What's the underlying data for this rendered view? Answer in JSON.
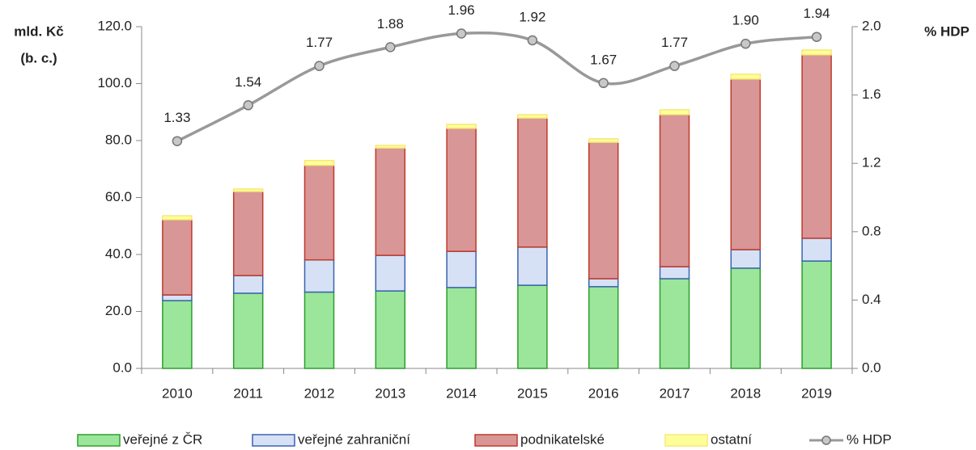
{
  "chart_data": {
    "type": "bar",
    "stacked": true,
    "ylabel": [
      "mld. Kč",
      "(b. c.)"
    ],
    "y2label": "% HDP",
    "categories": [
      "2010",
      "2011",
      "2012",
      "2013",
      "2014",
      "2015",
      "2016",
      "2017",
      "2018",
      "2019"
    ],
    "series": [
      {
        "name": "veřejné z ČR",
        "color": "#9be69b",
        "stroke": "#2e9e2e",
        "values": [
          23.8,
          26.4,
          26.8,
          27.2,
          28.4,
          29.2,
          28.7,
          31.5,
          35.2,
          37.7
        ]
      },
      {
        "name": "veřejné zahraniční",
        "color": "#d7e1f5",
        "stroke": "#3a63b0",
        "values": [
          2.0,
          6.2,
          11.3,
          12.5,
          12.7,
          13.4,
          2.8,
          4.2,
          6.5,
          8.0
        ]
      },
      {
        "name": "podnikatelské",
        "color": "#d99696",
        "stroke": "#c0392b",
        "values": [
          26.4,
          29.5,
          33.2,
          37.7,
          43.2,
          45.3,
          47.9,
          53.4,
          59.9,
          64.4
        ]
      },
      {
        "name": "ostatní",
        "color": "#ffff99",
        "stroke": "#f5e87a",
        "values": [
          1.4,
          0.9,
          1.7,
          0.9,
          1.4,
          1.2,
          1.2,
          1.7,
          1.7,
          1.7
        ]
      },
      {
        "name": "% HDP",
        "type": "line",
        "axis": "y2",
        "color": "#999999",
        "marker_color": "#c8c8c8",
        "marker_stroke": "#777777",
        "values": [
          1.33,
          1.54,
          1.77,
          1.88,
          1.96,
          1.92,
          1.67,
          1.77,
          1.9,
          1.94
        ],
        "value_labels": [
          "1.33",
          "1.54",
          "1.77",
          "1.88",
          "1.96",
          "1.92",
          "1.67",
          "1.77",
          "1.90",
          "1.94"
        ]
      }
    ],
    "ylim": [
      0,
      120
    ],
    "yticks": [
      {
        "value": 0,
        "label": "0.0"
      },
      {
        "value": 20,
        "label": "20.0"
      },
      {
        "value": 40,
        "label": "40.0"
      },
      {
        "value": 60,
        "label": "60.0"
      },
      {
        "value": 80,
        "label": "80.0"
      },
      {
        "value": 100,
        "label": "100.0"
      },
      {
        "value": 120,
        "label": "120.0"
      }
    ],
    "y2lim": [
      0,
      2
    ],
    "y2ticks": [
      {
        "value": 0,
        "label": "0.0"
      },
      0.4,
      0.8,
      1.2,
      1.6,
      {
        "value": 2,
        "label": "2.0"
      }
    ],
    "legend": "bottom"
  }
}
